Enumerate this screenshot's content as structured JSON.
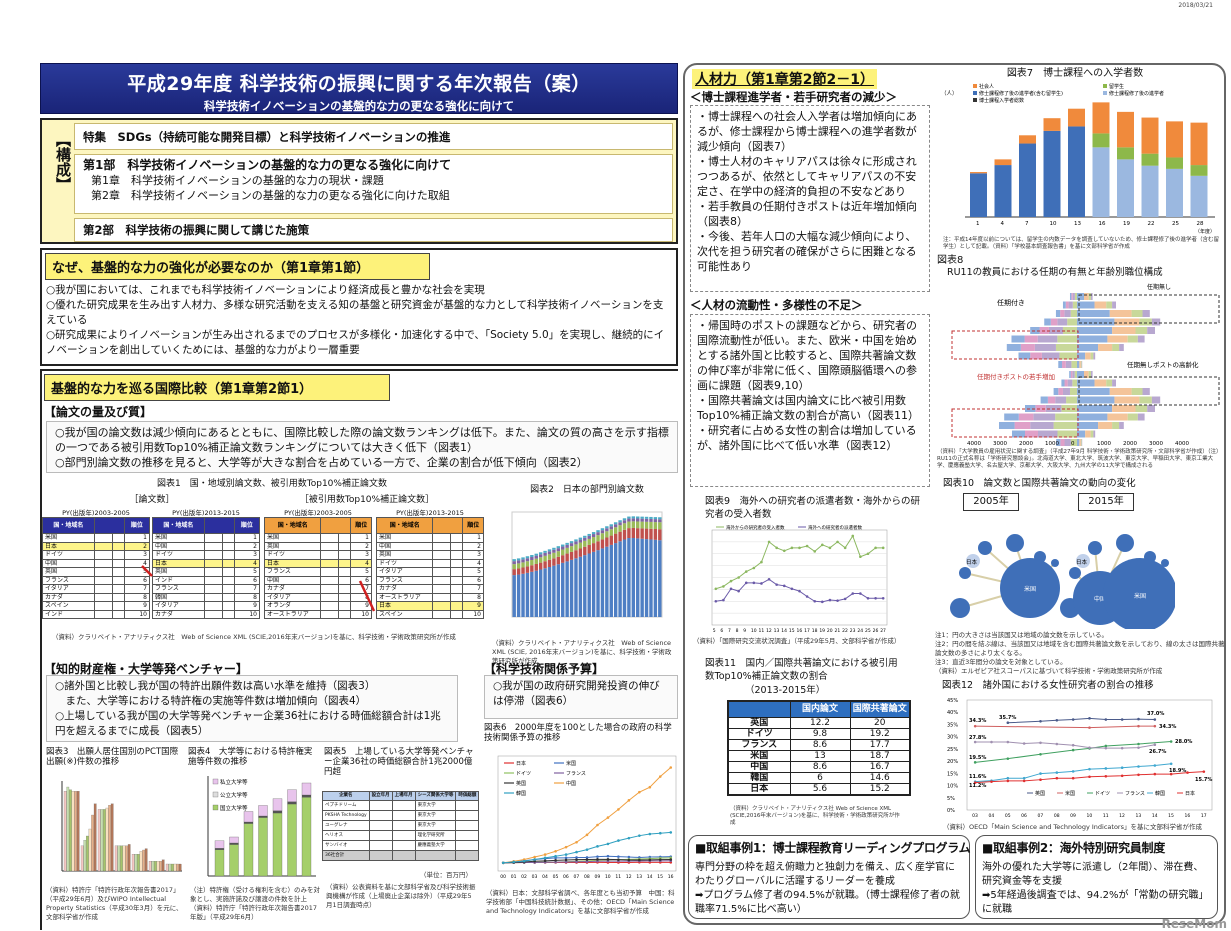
{
  "date": "2018/03/21",
  "title": "平成29年度 科学技術の振興に関する年次報告（案）",
  "subtitle": "科学技術イノベーションの基盤的な力の更なる強化に向けて",
  "structure": {
    "label": "【構成】",
    "special": "特集　SDGs（持続可能な開発目標）と科学技術イノベーションの推進",
    "part1": "第1部　科学技術イノベーションの基盤的な力の更なる強化に向けて",
    "ch1": "第1章　科学技術イノベーションの基盤的な力の現状・課題",
    "ch2": "第2章　科学技術イノベーションの基盤的な力の更なる強化に向けた取組",
    "part2": "第2部　科学技術の振興に関して講じた施策"
  },
  "why": {
    "heading": "なぜ、基盤的な力の強化が必要なのか（第1章第1節）",
    "bullets": [
      "○我が国においては、これまでも科学技術イノベーションにより経済成長と豊かな社会を実現",
      "○優れた研究成果を生み出す人材力、多様な研究活動を支える知の基盤と研究資金が基盤的な力として科学技術イノベーションを支えている",
      "○研究成果によりイノベーションが生み出されるまでのプロセスが多様化・加速化する中で、「Society 5.0」を実現し、継続的にイノベーションを創出していくためには、基盤的な力がより一層重要"
    ]
  },
  "intl": {
    "heading": "基盤的な力を巡る国際比較（第1章第2節1）",
    "papers": {
      "heading": "【論文の量及び質】",
      "bullets": [
        "○我が国の論文数は減少傾向にあるとともに、国際比較した際の論文数ランキングは低下。また、論文の質の高さを示す指標の一つである被引用数Top10%補正論文数ランキングについては大きく低下（図表1）",
        "○部門別論文数の推移を見ると、大学等が大きな割合を占めている一方で、企業の割合が低下傾向（図表2）"
      ],
      "fig1": {
        "title": "図表1　国・地域別論文数、被引用数Top10%補正論文数",
        "group1": "［論文数］",
        "group2": "［被引用数Top10%補正論文数］",
        "py_old": "PY(出版年)2003-2005",
        "py_new": "PY(出版年)2013-2015",
        "col_country": "国・地域名",
        "col_rank": "順位",
        "tables": [
          {
            "rows": [
              "米国",
              "日本",
              "ドイツ",
              "中国",
              "英国",
              "フランス",
              "イタリア",
              "カナダ",
              "スペイン",
              "インド"
            ],
            "highlight": 1
          },
          {
            "rows": [
              "米国",
              "中国",
              "ドイツ",
              "日本",
              "英国",
              "インド",
              "フランス",
              "韓国",
              "イタリア",
              "カナダ"
            ],
            "highlight": 3
          },
          {
            "rows": [
              "米国",
              "英国",
              "ドイツ",
              "日本",
              "フランス",
              "中国",
              "カナダ",
              "イタリア",
              "オランダ",
              "オーストラリア"
            ],
            "highlight": 3
          },
          {
            "rows": [
              "米国",
              "中国",
              "英国",
              "ドイツ",
              "イタリア",
              "フランス",
              "カナダ",
              "オーストラリア",
              "日本",
              "スペイン"
            ],
            "highlight": 8
          }
        ],
        "source": "（資料）クラリベイト・アナリティクス社　Web of Science XML (SCIE,2016年末バージョン)を基に、科学技術・学術政策研究所が作成"
      },
      "fig2": {
        "title": "図表2　日本の部門別論文数",
        "source": "（資料）クラリベイト・アナリティクス社　Web of Science XML (SCIE, 2016年末バージョン)を基に、科学技術・学術政策研究所が作成"
      }
    },
    "ip": {
      "heading": "【知的財産権・大学等発ベンチャー】",
      "bullets": [
        "○諸外国と比較し我が国の特許出願件数は高い水準を維持（図表3）",
        "　また、大学等における特許権の実施等件数は増加傾向（図表4）",
        "○上場している我が国の大学等発ベンチャー企業36社における時価総額合計は1兆円を超えるまでに成長（図表5）"
      ],
      "fig3": {
        "title": "図表3　出願人居住国別のPCT国際出願(※)件数の推移",
        "source": "（資料）特許庁「特許行政年次報告書2017」（平成29年6月）及びWIPO Intellectual Property Statistics（平成30年3月）を元に、文部科学省が作成"
      },
      "fig4": {
        "title": "図表4　大学等における特許権実施等件数の推移",
        "legend": [
          "私立大学等",
          "公立大学等",
          "国立大学等"
        ],
        "source": "（注）特許権（受ける権利を含む）のみを対象とし、実施許諾及び譲渡の件数を計上　（資料）特許庁「特許行政年次報告書2017年版」（平成29年6月）"
      },
      "fig5": {
        "title": "図表5　上場している大学等発ベンチャー企業36社の時価総額合計1兆2000億円超",
        "headers": [
          "企業名",
          "設立年月",
          "上場年月",
          "シーズ関係大学等",
          "時価総額"
        ],
        "rows": [
          [
            "ペプチドリーム",
            "",
            "",
            "東京大学",
            ""
          ],
          [
            "PKSHA Technology",
            "",
            "",
            "東京大学",
            ""
          ],
          [
            "ユーグレナ",
            "",
            "",
            "東京大学",
            ""
          ],
          [
            "ヘリオス",
            "",
            "",
            "理化学研究所",
            ""
          ],
          [
            "サンバイオ",
            "",
            "",
            "慶應義塾大学",
            ""
          ]
        ],
        "total_label": "36社合計",
        "unit": "（単位：百万円）",
        "source": "（資料）公表資料を基に文部科学省及び科学技術振興機構が作成（上場廃止企業は除外）（平成29年5月1日調査時点）"
      }
    },
    "budget": {
      "heading": "【科学技術関係予算】",
      "bullets": [
        "○我が国の政府研究開発投資の伸びは停滞（図表6）"
      ],
      "fig6": {
        "title": "図表6　2000年度を100とした場合の政府の科学技術関係予算の推移",
        "source": "（資料）日本：文部科学省調べ、各年度とも当初予算　中国：科学技術部「中国科技統計数据」、その他：OECD「Main Science and Technology Indicators」を基に文部科学省が作成"
      }
    }
  },
  "hr": {
    "heading": "人材力（第1章第2節2－1）",
    "sub1": "＜博士課程進学者・若手研究者の減少＞",
    "bullets1": [
      "・博士課程への社会人入学者は増加傾向にあるが、修士課程から博士課程への進学者数が減少傾向（図表7）",
      "・博士人材のキャリアパスは徐々に形成されつつあるが、依然としてキャリアパスの不安定さ、在学中の経済的負担の不安などあり",
      "・若手教員の任期付きポストは近年増加傾向（図表8）",
      "・今後、若年人口の大幅な減少傾向により、次代を担う研究者の確保がさらに困難となる可能性あり"
    ],
    "sub2": "＜人材の流動性・多様性の不足＞",
    "bullets2": [
      "・帰国時のポストの課題などから、研究者の国際流動性が低い。また、欧米・中国を始めとする諸外国と比較すると、国際共著論文数の伸び率が非常に低く、国際頭脳循環への参画に課題（図表9,10）",
      "・国際共著論文は国内論文に比べ被引用数Top10%補正論文数の割合が高い（図表11）",
      "・研究者に占める女性の割合は増加しているが、諸外国に比べて低い水準（図表12）"
    ],
    "fig7": {
      "title": "図表7　博士課程への入学者数",
      "legend": [
        "社会人",
        "留学生",
        "修士課程修了後の進学者(含む留学生)",
        "修士課程修了後の進学者",
        "博士課程入学者総数"
      ],
      "note": "注：平成14年度以前については、留学生の内数データを調査していないため、修士課程修了後の進学者（含む留学生）として記載。（資料）「学校基本調査報告書」を基に文部科学省が作成",
      "xlabel": "（年度）"
    },
    "fig8": {
      "title": "図表8",
      "subtitle": "RU11の教員における任期の有無と年齢別職位構成",
      "label_fixed": "任期付き",
      "label_tenure": "任期無し",
      "label_young": "任期付きポストの若手増加",
      "label_aging": "任期無しポストの高齢化",
      "x_ticks": [
        "4000",
        "3000",
        "2000",
        "1000",
        "0",
        "1000",
        "2000",
        "3000",
        "4000"
      ],
      "source": "（資料）「大学教員の雇用状況に関する調査」（平成27年9月 科学技術・学術政策研究所・文部科学省が作成）（注）RU11の正式名称は「学術研究懇談会」。北海道大学、東北大学、筑波大学、東京大学、早稲田大学、東京工業大学、慶應義塾大学、名古屋大学、京都大学、大阪大学、九州大学の11大学で構成される"
    },
    "fig9": {
      "title": "図表9　海外への研究者の派遣者数・海外からの研究者の受入者数",
      "legend": [
        "海外からの研究者の受入者数",
        "海外への研究者の派遣者数"
      ],
      "source": "（資料）「国際研究交流状況調査」（平成29年5月、文部科学省が作成）"
    },
    "fig10": {
      "title": "図表10　論文数と国際共著論文の動向の変化",
      "year1": "2005年",
      "year2": "2015年",
      "notes": [
        "注1：円の大きさは当該国又は地域の論文数を示している。",
        "注2：円の間を結ぶ線は、当該国又は地域を含む国際共著論文数を示しており、線の太さは国際共著論文数の多さにより太くなる。",
        "注3：直近3年間分の論文を対象としている。",
        "（資料）エルゼビア社スコーパスに基づいて科学技術・学術政策研究所が作成"
      ],
      "big1": "米国",
      "big2a": "中国",
      "big2b": "米国",
      "jp": "日本"
    },
    "fig11": {
      "title": "図表11　国内／国際共著論文における被引用数Top10%補正論文数の割合",
      "period": "（2013-2015年）",
      "headers": [
        "",
        "国内論文",
        "国際共著論文"
      ],
      "rows": [
        [
          "英国",
          "12.2",
          "20"
        ],
        [
          "ドイツ",
          "9.8",
          "19.2"
        ],
        [
          "フランス",
          "8.6",
          "17.7"
        ],
        [
          "米国",
          "13",
          "18.7"
        ],
        [
          "中国",
          "8.6",
          "16.7"
        ],
        [
          "韓国",
          "6",
          "14.6"
        ],
        [
          "日本",
          "5.6",
          "15.2"
        ]
      ],
      "source": "（資料）クラリベイト・アナリティクス社 Web of Science XML (SCIE,2016年末バージョン)を基に、科学技術・学術政策研究所が作成"
    },
    "fig12": {
      "title": "図表12　諸外国における女性研究者の割合の推移",
      "source": "（資料）OECD「Main Science and Technology Indicators」を基に文部科学省が作成"
    }
  },
  "cases": [
    {
      "title": "■取組事例1：博士課程教育リーディングプログラム",
      "body": "専門分野の枠を超え俯瞰力と独創力を備え、広く産学官にわたりグローバルに活躍するリーダーを養成",
      "result": "➡プログラム修了者の94.5%が就職。（博士課程修了者の就職率71.5%に比べ高い）"
    },
    {
      "title": "■取組事例2：海外特別研究員制度",
      "body": "海外の優れた大学等に派遣し（2年間）、滞在費、研究資金等を支援",
      "result": "➡5年経過後調査では、94.2%が「常勤の研究職」に就職"
    }
  ],
  "watermark": "ReseMom",
  "colors": {
    "banner": "#1f2a86",
    "highlight": "#fdf27a",
    "table_blue": "#2b2f9e",
    "table_orange": "#f0a040",
    "bar_blue": "#4f7fc4",
    "bar_orange": "#f08a3c",
    "bar_green": "#8db84a"
  },
  "chart_data": [
    {
      "type": "bar",
      "id": "fig7",
      "categories": [
        "1",
        "4",
        "7",
        "10",
        "13",
        "16",
        "19",
        "22",
        "25",
        "28"
      ],
      "xlabel": "（年度）",
      "ylabel": "（人）",
      "ylim": [
        0,
        18000
      ],
      "series": [
        {
          "name": "修士課程修了後の進学者(含む留学生)",
          "values": [
            6900,
            8200,
            11600,
            13600,
            14300,
            0,
            0,
            0,
            0,
            0
          ]
        },
        {
          "name": "修士課程修了後の進学者",
          "values": [
            0,
            0,
            0,
            0,
            0,
            11000,
            9100,
            8100,
            7600,
            6500
          ]
        },
        {
          "name": "留学生",
          "values": [
            0,
            0,
            0,
            0,
            0,
            2200,
            1900,
            1900,
            1800,
            1700
          ]
        },
        {
          "name": "社会人",
          "values": [
            200,
            900,
            1300,
            2000,
            2800,
            4900,
            5600,
            5700,
            5700,
            6700
          ]
        }
      ]
    },
    {
      "type": "line",
      "id": "fig9",
      "x": [
        "5",
        "6",
        "7",
        "8",
        "9",
        "10",
        "11",
        "12",
        "13",
        "14",
        "15",
        "16",
        "17",
        "18",
        "19",
        "20",
        "21",
        "22",
        "23",
        "24",
        "25",
        "26",
        "27"
      ],
      "ylim": [
        0,
        16000
      ],
      "series": [
        {
          "name": "海外からの研究者の受入者数",
          "values": [
            6100,
            6500,
            7400,
            8000,
            9000,
            9600,
            10600,
            14000,
            13000,
            12500,
            13000,
            13000,
            13300,
            12400,
            13500,
            13000,
            14000,
            13000,
            15000,
            11500,
            12000,
            13000,
            13000
          ]
        },
        {
          "name": "海外への研究者の派遣者数",
          "values": [
            4000,
            4200,
            6100,
            5700,
            7100,
            7100,
            7000,
            7700,
            6800,
            6600,
            6100,
            5700,
            4800,
            4000,
            3900,
            4200,
            4100,
            4400,
            5300,
            5300,
            4500,
            4500,
            4500
          ]
        }
      ]
    },
    {
      "type": "line",
      "id": "fig12",
      "x": [
        "03",
        "04",
        "05",
        "06",
        "07",
        "08",
        "09",
        "10",
        "11",
        "12",
        "13",
        "14",
        "15",
        "16",
        "17"
      ],
      "ylim": [
        0,
        45
      ],
      "y_ticks": [
        "0%",
        "5%",
        "10%",
        "15%",
        "20%",
        "25%",
        "30%",
        "35%",
        "40%",
        "45%"
      ],
      "series": [
        {
          "name": "英国",
          "values": [
            null,
            null,
            35.7,
            null,
            36.3,
            36.7,
            37.0,
            37.5,
            37.0,
            37.0,
            37.2,
            37.0,
            null,
            null,
            null
          ]
        },
        {
          "name": "米国",
          "values": [
            34.3,
            null,
            null,
            null,
            null,
            null,
            null,
            33.7,
            null,
            null,
            34.3,
            34.3,
            null,
            null,
            null
          ]
        },
        {
          "name": "ドイツ",
          "values": [
            19.5,
            null,
            21.0,
            null,
            22.8,
            null,
            24.5,
            25.2,
            26.2,
            null,
            27.0,
            null,
            28.0,
            null,
            null
          ]
        },
        {
          "name": "フランス",
          "values": [
            27.8,
            27.8,
            27.8,
            27.2,
            27.5,
            27.0,
            26.5,
            25.5,
            25.3,
            25.3,
            25.5,
            26.7,
            null,
            null,
            null
          ]
        },
        {
          "name": "韓国",
          "values": [
            11.6,
            12.0,
            13.0,
            13.0,
            14.9,
            15.3,
            15.8,
            16.7,
            17.0,
            17.3,
            17.8,
            18.2,
            18.9,
            null,
            null
          ]
        },
        {
          "name": "日本",
          "values": [
            11.2,
            11.6,
            11.9,
            11.9,
            12.4,
            13.0,
            13.0,
            13.6,
            13.8,
            14.0,
            14.4,
            14.7,
            14.7,
            15.3,
            15.7
          ]
        }
      ],
      "labels": [
        "35.7%",
        "37.0%",
        "34.3%",
        "34.3%",
        "27.8%",
        "26.7%",
        "28.0%",
        "19.5%",
        "18.9%",
        "11.6%",
        "11.2%",
        "15.7%"
      ]
    },
    {
      "type": "line",
      "id": "fig6",
      "x": [
        "00",
        "01",
        "02",
        "03",
        "04",
        "05",
        "06",
        "07",
        "08",
        "09",
        "10",
        "11",
        "12",
        "13",
        "14",
        "15",
        "16"
      ],
      "series": [
        {
          "name": "日本",
          "values": [
            100,
            102,
            103,
            103,
            104,
            104,
            103,
            104,
            104,
            105,
            104,
            104,
            104,
            106,
            105,
            105,
            105
          ]
        },
        {
          "name": "米国",
          "values": [
            100,
            110,
            125,
            140,
            150,
            160,
            160,
            165,
            165,
            175,
            180,
            175,
            170,
            165,
            170,
            172,
            175
          ]
        },
        {
          "name": "ドイツ",
          "values": [
            100,
            102,
            104,
            105,
            106,
            108,
            112,
            118,
            124,
            130,
            136,
            138,
            142,
            146,
            150,
            156,
            160
          ]
        },
        {
          "name": "フランス",
          "values": [
            100,
            102,
            104,
            104,
            106,
            108,
            110,
            112,
            114,
            118,
            120,
            120,
            120,
            122,
            124,
            124,
            125
          ]
        },
        {
          "name": "英国",
          "values": [
            100,
            104,
            110,
            118,
            124,
            130,
            134,
            138,
            140,
            142,
            142,
            138,
            134,
            134,
            136,
            138,
            140
          ]
        },
        {
          "name": "中国",
          "values": [
            100,
            118,
            140,
            170,
            200,
            240,
            290,
            350,
            440,
            560,
            650,
            750,
            860,
            960,
            1020,
            1150,
            1260
          ]
        },
        {
          "name": "韓国",
          "values": [
            100,
            110,
            120,
            140,
            160,
            180,
            200,
            230,
            260,
            300,
            330,
            370,
            400,
            430,
            450,
            460,
            470
          ]
        }
      ]
    },
    {
      "type": "table",
      "id": "fig11",
      "columns": [
        "国内論文",
        "国際共著論文"
      ],
      "rows": {
        "英国": [
          12.2,
          20
        ],
        "ドイツ": [
          9.8,
          19.2
        ],
        "フランス": [
          8.6,
          17.7
        ],
        "米国": [
          13,
          18.7
        ],
        "中国": [
          8.6,
          16.7
        ],
        "韓国": [
          6,
          14.6
        ],
        "日本": [
          5.6,
          15.2
        ]
      }
    }
  ]
}
